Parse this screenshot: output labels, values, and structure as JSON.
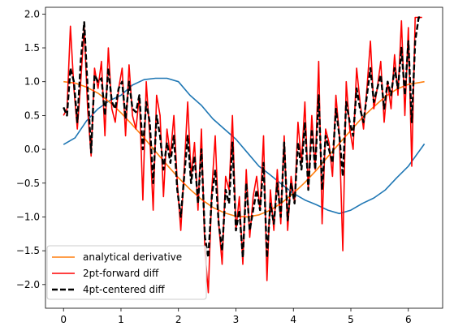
{
  "chart_data": {
    "type": "line",
    "title": "",
    "xlabel": "",
    "ylabel": "",
    "xlim": [
      -0.314,
      6.597
    ],
    "ylim": [
      -2.35,
      2.1
    ],
    "xticks": [
      0,
      1,
      2,
      3,
      4,
      5,
      6
    ],
    "xtick_labels": [
      "0",
      "1",
      "2",
      "3",
      "4",
      "5",
      "6"
    ],
    "yticks": [
      -2.0,
      -1.5,
      -1.0,
      -0.5,
      0.0,
      0.5,
      1.0,
      1.5,
      2.0
    ],
    "ytick_labels": [
      "−2.0",
      "−1.5",
      "−1.0",
      "−0.5",
      "0.0",
      "0.5",
      "1.0",
      "1.5",
      "2.0"
    ],
    "grid": false,
    "legend_position": "lower-left",
    "legend": [
      "analytical derivative",
      "2pt-forward diff",
      "4pt-centered diff"
    ],
    "series": [
      {
        "name": "",
        "color": "#1f77b4",
        "style": "solid",
        "x": [
          0.0,
          0.2,
          0.4,
          0.6,
          0.8,
          1.0,
          1.2,
          1.4,
          1.6,
          1.8,
          2.0,
          2.2,
          2.4,
          2.6,
          2.8,
          3.0,
          3.2,
          3.4,
          3.6,
          3.8,
          4.0,
          4.2,
          4.4,
          4.6,
          4.8,
          5.0,
          5.2,
          5.4,
          5.6,
          5.8,
          6.0,
          6.28
        ],
        "y": [
          0.07,
          0.17,
          0.42,
          0.6,
          0.72,
          0.8,
          0.95,
          1.03,
          1.05,
          1.05,
          1.0,
          0.8,
          0.65,
          0.45,
          0.3,
          0.15,
          -0.05,
          -0.25,
          -0.38,
          -0.52,
          -0.65,
          -0.75,
          -0.82,
          -0.9,
          -0.95,
          -0.9,
          -0.8,
          -0.72,
          -0.6,
          -0.42,
          -0.25,
          0.08
        ]
      },
      {
        "name": "analytical derivative",
        "color": "#ff7f0e",
        "style": "solid",
        "x": [
          0.0,
          0.2,
          0.4,
          0.6,
          0.8,
          1.0,
          1.2,
          1.4,
          1.6,
          1.8,
          2.0,
          2.2,
          2.4,
          2.6,
          2.8,
          3.0,
          3.2,
          3.4,
          3.6,
          3.8,
          4.0,
          4.2,
          4.4,
          4.6,
          4.8,
          5.0,
          5.2,
          5.4,
          5.6,
          5.8,
          6.0,
          6.28
        ],
        "y": [
          1.0,
          0.98,
          0.92,
          0.83,
          0.7,
          0.54,
          0.36,
          0.17,
          -0.03,
          -0.23,
          -0.42,
          -0.59,
          -0.74,
          -0.86,
          -0.94,
          -0.99,
          -1.0,
          -0.97,
          -0.9,
          -0.79,
          -0.65,
          -0.49,
          -0.31,
          -0.11,
          0.09,
          0.28,
          0.47,
          0.63,
          0.78,
          0.89,
          0.96,
          1.0
        ]
      },
      {
        "name": "2pt-forward diff",
        "color": "#ff0000",
        "style": "solid",
        "x": [
          0.0,
          0.06,
          0.12,
          0.18,
          0.24,
          0.3,
          0.36,
          0.42,
          0.48,
          0.54,
          0.6,
          0.66,
          0.72,
          0.78,
          0.84,
          0.9,
          0.96,
          1.02,
          1.08,
          1.14,
          1.2,
          1.26,
          1.32,
          1.38,
          1.44,
          1.5,
          1.56,
          1.62,
          1.68,
          1.74,
          1.8,
          1.86,
          1.92,
          1.98,
          2.04,
          2.1,
          2.16,
          2.22,
          2.28,
          2.34,
          2.4,
          2.46,
          2.52,
          2.58,
          2.64,
          2.7,
          2.76,
          2.82,
          2.88,
          2.94,
          3.0,
          3.06,
          3.12,
          3.18,
          3.24,
          3.3,
          3.36,
          3.42,
          3.48,
          3.54,
          3.6,
          3.66,
          3.72,
          3.78,
          3.84,
          3.9,
          3.96,
          4.02,
          4.08,
          4.14,
          4.2,
          4.26,
          4.32,
          4.38,
          4.44,
          4.5,
          4.56,
          4.62,
          4.68,
          4.74,
          4.8,
          4.86,
          4.92,
          4.98,
          5.04,
          5.1,
          5.16,
          5.22,
          5.28,
          5.34,
          5.4,
          5.46,
          5.52,
          5.58,
          5.64,
          5.7,
          5.76,
          5.82,
          5.88,
          5.94,
          6.0,
          6.06,
          6.12,
          6.18,
          6.24
        ],
        "y": [
          0.5,
          0.6,
          1.82,
          0.9,
          0.3,
          1.0,
          1.8,
          0.6,
          -0.1,
          1.2,
          0.9,
          1.3,
          0.2,
          1.5,
          0.6,
          0.4,
          0.9,
          1.2,
          0.2,
          1.25,
          0.5,
          0.3,
          0.8,
          -0.75,
          1.0,
          0.2,
          -0.9,
          0.8,
          0.5,
          -0.7,
          0.3,
          -0.1,
          0.5,
          -0.5,
          -1.2,
          -0.3,
          0.7,
          -0.4,
          0.1,
          -0.9,
          0.3,
          -1.5,
          -2.12,
          -0.6,
          0.2,
          -1.1,
          -1.7,
          -0.4,
          -0.6,
          0.5,
          -1.2,
          -0.7,
          -1.7,
          -0.3,
          -1.3,
          -0.7,
          -0.4,
          -0.9,
          0.2,
          -1.94,
          -0.6,
          -1.2,
          -0.3,
          -1.1,
          0.2,
          -1.2,
          -0.4,
          -0.8,
          0.4,
          -0.2,
          0.7,
          -0.6,
          0.5,
          -0.3,
          1.3,
          -1.1,
          0.3,
          0.1,
          -0.4,
          0.8,
          0.2,
          -1.5,
          1.0,
          0.3,
          0.0,
          1.2,
          0.7,
          0.3,
          0.9,
          1.6,
          0.6,
          0.9,
          1.3,
          0.4,
          1.0,
          0.6,
          1.4,
          0.8,
          1.9,
          0.5,
          1.8,
          -0.25,
          1.95,
          1.95,
          1.95
        ]
      },
      {
        "name": "4pt-centered diff",
        "color": "#000000",
        "style": "dashed",
        "x": [
          0.0,
          0.06,
          0.12,
          0.18,
          0.24,
          0.3,
          0.36,
          0.42,
          0.48,
          0.54,
          0.6,
          0.66,
          0.72,
          0.78,
          0.84,
          0.9,
          0.96,
          1.02,
          1.08,
          1.14,
          1.2,
          1.26,
          1.32,
          1.38,
          1.44,
          1.5,
          1.56,
          1.62,
          1.68,
          1.74,
          1.8,
          1.86,
          1.92,
          1.98,
          2.04,
          2.1,
          2.16,
          2.22,
          2.28,
          2.34,
          2.4,
          2.46,
          2.52,
          2.58,
          2.64,
          2.7,
          2.76,
          2.82,
          2.88,
          2.94,
          3.0,
          3.06,
          3.12,
          3.18,
          3.24,
          3.3,
          3.36,
          3.42,
          3.48,
          3.54,
          3.6,
          3.66,
          3.72,
          3.78,
          3.84,
          3.9,
          3.96,
          4.02,
          4.08,
          4.14,
          4.2,
          4.26,
          4.32,
          4.38,
          4.44,
          4.5,
          4.56,
          4.62,
          4.68,
          4.74,
          4.8,
          4.86,
          4.92,
          4.98,
          5.04,
          5.1,
          5.16,
          5.22,
          5.28,
          5.34,
          5.4,
          5.46,
          5.52,
          5.58,
          5.64,
          5.7,
          5.76,
          5.82,
          5.88,
          5.94,
          6.0,
          6.06,
          6.12,
          6.18,
          6.24
        ],
        "y": [
          0.62,
          0.5,
          1.2,
          1.0,
          0.4,
          1.3,
          1.88,
          0.9,
          -0.05,
          1.1,
          1.0,
          1.05,
          0.5,
          1.2,
          0.7,
          0.6,
          0.9,
          1.0,
          0.45,
          1.0,
          0.6,
          0.55,
          0.8,
          0.0,
          0.7,
          0.4,
          -0.5,
          0.5,
          0.2,
          -0.3,
          0.1,
          -0.2,
          0.2,
          -0.6,
          -1.0,
          -0.4,
          0.2,
          -0.5,
          -0.1,
          -0.8,
          0.0,
          -1.3,
          -1.6,
          -0.7,
          -0.3,
          -1.1,
          -1.5,
          -0.6,
          -0.8,
          0.1,
          -1.2,
          -0.9,
          -1.6,
          -0.5,
          -1.2,
          -0.9,
          -0.6,
          -0.9,
          -0.2,
          -1.6,
          -0.8,
          -1.1,
          -0.5,
          -1.0,
          0.1,
          -1.05,
          -0.5,
          -0.8,
          0.1,
          -0.3,
          0.4,
          -0.6,
          0.3,
          -0.3,
          0.8,
          -0.6,
          0.2,
          0.0,
          -0.2,
          0.6,
          0.2,
          -0.4,
          0.7,
          0.4,
          0.2,
          0.9,
          0.6,
          0.4,
          0.8,
          1.2,
          0.7,
          0.9,
          1.1,
          0.6,
          1.0,
          0.8,
          1.2,
          0.9,
          1.5,
          0.8,
          1.6,
          0.4,
          1.6,
          1.95,
          1.95
        ]
      }
    ]
  }
}
